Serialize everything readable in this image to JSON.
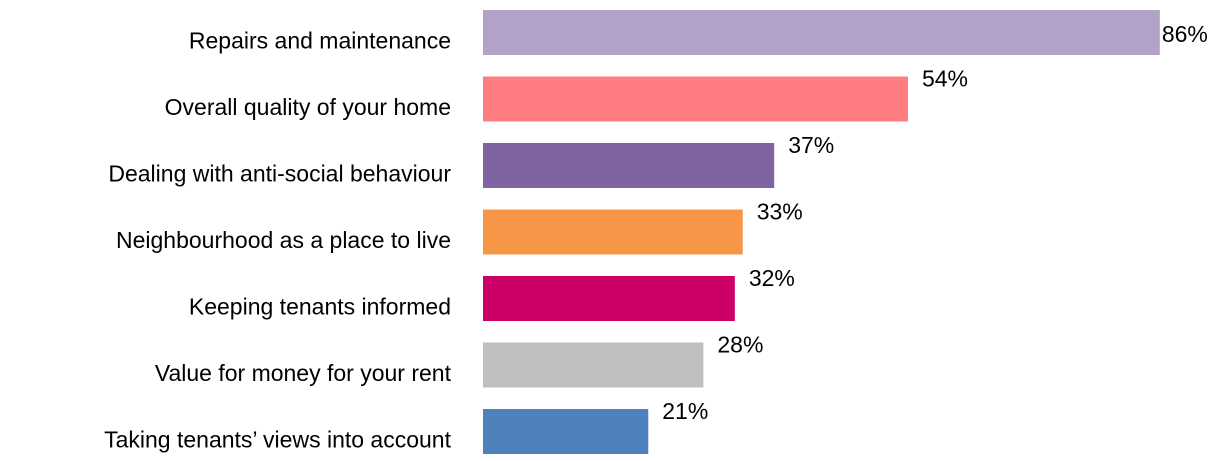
{
  "chart_data": {
    "type": "bar",
    "orientation": "horizontal",
    "categories": [
      "Repairs and maintenance",
      "Overall quality of your home",
      "Dealing with anti-social behaviour",
      "Neighbourhood as a place to live",
      "Keeping tenants informed",
      "Value for money for your rent",
      "Taking tenants’ views into account"
    ],
    "values": [
      86,
      54,
      37,
      33,
      32,
      28,
      21
    ],
    "value_labels": [
      "86%",
      "54%",
      "37%",
      "33%",
      "32%",
      "28%",
      "21%"
    ],
    "colors": [
      "#b3a2c7",
      "#ff7c80",
      "#8064a2",
      "#f79646",
      "#cc0066",
      "#bfbfbf",
      "#4f81bd"
    ]
  }
}
